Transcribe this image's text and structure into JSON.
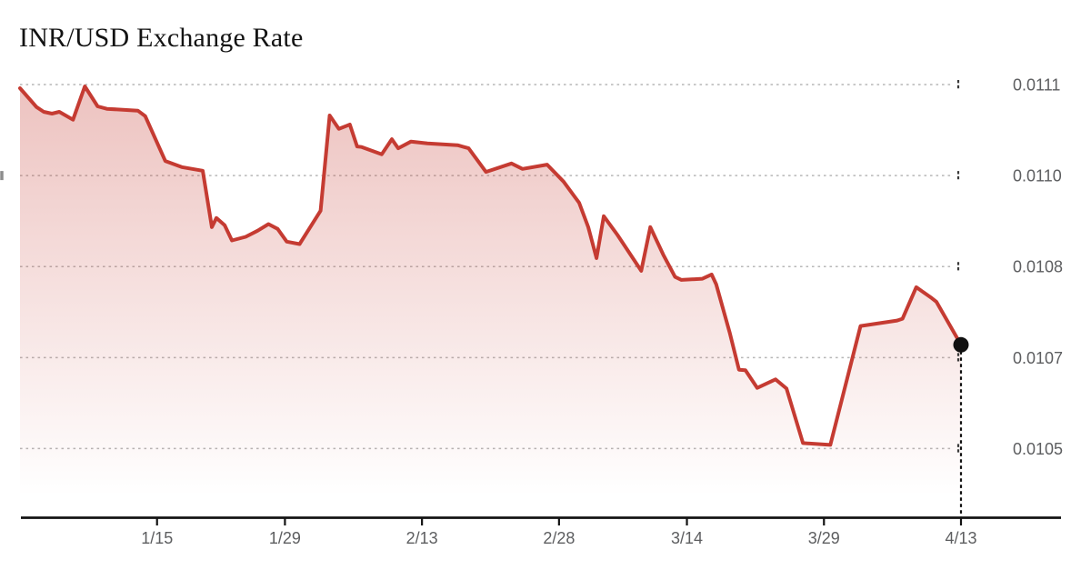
{
  "chart_data": {
    "type": "area",
    "title": "INR/USD Exchange Rate",
    "xlabel": "",
    "ylabel": "",
    "legend": "none",
    "grid": "dashed-horizontal",
    "x_axis": {
      "start_date": "12/31",
      "end_date": "4/13",
      "span_days": 103
    },
    "ylim": [
      0.010386,
      0.0111
    ],
    "x_ticks": [
      {
        "label": "1/15",
        "day": 15
      },
      {
        "label": "1/29",
        "day": 29
      },
      {
        "label": "2/13",
        "day": 44
      },
      {
        "label": "2/28",
        "day": 59
      },
      {
        "label": "3/14",
        "day": 73
      },
      {
        "label": "3/29",
        "day": 88
      },
      {
        "label": "4/13",
        "day": 103
      }
    ],
    "y_ticks": [
      {
        "label": "0.0111",
        "value": 0.0111
      },
      {
        "label": "0.0110",
        "value": 0.01095
      },
      {
        "label": "0.0108",
        "value": 0.0108
      },
      {
        "label": "0.0107",
        "value": 0.01065
      },
      {
        "label": "0.0105",
        "value": 0.0105
      }
    ],
    "end_marker": {
      "date": "4/13",
      "value": 0.010671,
      "style": "dot-with-dashed-dropline"
    },
    "colors": {
      "line": "#c53b32",
      "fill_top": "rgba(197,59,50,0.31)",
      "fill_bottom": "rgba(197,59,50,0)",
      "grid": "#b7b7b7",
      "axis": "#131313",
      "tick": "#3a3a3a",
      "tick_label": "#5d5e60",
      "marker": "#111111",
      "title": "#131313"
    },
    "series": [
      {
        "date": "12/31",
        "day": 0.0,
        "value": 0.011094
      },
      {
        "date": "1/2",
        "day": 1.8,
        "value": 0.011063
      },
      {
        "date": "1/3",
        "day": 2.6,
        "value": 0.011055
      },
      {
        "date": "1/4",
        "day": 3.5,
        "value": 0.011052
      },
      {
        "date": "1/5",
        "day": 4.3,
        "value": 0.011055
      },
      {
        "date": "1/6",
        "day": 5.8,
        "value": 0.011042
      },
      {
        "date": "1/7",
        "day": 7.1,
        "value": 0.011097
      },
      {
        "date": "1/9",
        "day": 8.5,
        "value": 0.011064
      },
      {
        "date": "1/10",
        "day": 9.5,
        "value": 0.01106
      },
      {
        "date": "1/13",
        "day": 12.9,
        "value": 0.011057
      },
      {
        "date": "1/14",
        "day": 13.7,
        "value": 0.011048
      },
      {
        "date": "1/16",
        "day": 15.9,
        "value": 0.010974
      },
      {
        "date": "1/18",
        "day": 17.7,
        "value": 0.010964
      },
      {
        "date": "1/20",
        "day": 20.0,
        "value": 0.010958
      },
      {
        "date": "1/21",
        "day": 21.0,
        "value": 0.010865
      },
      {
        "date": "1/22",
        "day": 21.5,
        "value": 0.01088
      },
      {
        "date": "1/23",
        "day": 22.4,
        "value": 0.010868
      },
      {
        "date": "1/24",
        "day": 23.2,
        "value": 0.010843
      },
      {
        "date": "1/25",
        "day": 24.7,
        "value": 0.010849
      },
      {
        "date": "1/26",
        "day": 26.0,
        "value": 0.010859
      },
      {
        "date": "1/27",
        "day": 27.2,
        "value": 0.01087
      },
      {
        "date": "1/28",
        "day": 28.2,
        "value": 0.010862
      },
      {
        "date": "1/29",
        "day": 29.2,
        "value": 0.010841
      },
      {
        "date": "1/31",
        "day": 30.6,
        "value": 0.010837
      },
      {
        "date": "2/2",
        "day": 32.9,
        "value": 0.010892
      },
      {
        "date": "2/3",
        "day": 33.9,
        "value": 0.011049
      },
      {
        "date": "2/4",
        "day": 34.9,
        "value": 0.011027
      },
      {
        "date": "2/5",
        "day": 36.1,
        "value": 0.011034
      },
      {
        "date": "2/6",
        "day": 36.9,
        "value": 0.010998
      },
      {
        "date": "2/7",
        "day": 37.4,
        "value": 0.010997
      },
      {
        "date": "2/9",
        "day": 39.6,
        "value": 0.010985
      },
      {
        "date": "2/10",
        "day": 40.7,
        "value": 0.01101
      },
      {
        "date": "2/11",
        "day": 41.4,
        "value": 0.010995
      },
      {
        "date": "2/12",
        "day": 42.8,
        "value": 0.011006
      },
      {
        "date": "2/14",
        "day": 44.6,
        "value": 0.011003
      },
      {
        "date": "2/17",
        "day": 47.9,
        "value": 0.011
      },
      {
        "date": "2/18",
        "day": 49.1,
        "value": 0.010995
      },
      {
        "date": "2/20",
        "day": 51.0,
        "value": 0.010956
      },
      {
        "date": "2/23",
        "day": 53.8,
        "value": 0.01097
      },
      {
        "date": "2/24",
        "day": 55.0,
        "value": 0.010961
      },
      {
        "date": "2/26",
        "day": 57.7,
        "value": 0.010968
      },
      {
        "date": "2/28",
        "day": 59.5,
        "value": 0.01094
      },
      {
        "date": "3/2",
        "day": 61.2,
        "value": 0.010905
      },
      {
        "date": "3/3",
        "day": 62.2,
        "value": 0.010865
      },
      {
        "date": "3/4",
        "day": 63.1,
        "value": 0.010814
      },
      {
        "date": "3/5",
        "day": 63.9,
        "value": 0.010883
      },
      {
        "date": "3/6",
        "day": 65.4,
        "value": 0.010852
      },
      {
        "date": "3/9",
        "day": 68.0,
        "value": 0.010793
      },
      {
        "date": "3/10",
        "day": 69.0,
        "value": 0.010865
      },
      {
        "date": "3/11",
        "day": 70.4,
        "value": 0.01082
      },
      {
        "date": "3/13",
        "day": 71.7,
        "value": 0.010783
      },
      {
        "date": "3/14",
        "day": 72.4,
        "value": 0.010778
      },
      {
        "date": "3/16",
        "day": 74.7,
        "value": 0.01078
      },
      {
        "date": "3/17",
        "day": 75.7,
        "value": 0.010787
      },
      {
        "date": "3/18",
        "day": 76.2,
        "value": 0.010771
      },
      {
        "date": "3/19",
        "day": 77.7,
        "value": 0.01069
      },
      {
        "date": "3/20",
        "day": 78.7,
        "value": 0.01063
      },
      {
        "date": "3/21",
        "day": 79.4,
        "value": 0.010629
      },
      {
        "date": "3/22",
        "day": 80.7,
        "value": 0.0106
      },
      {
        "date": "3/24",
        "day": 82.7,
        "value": 0.010614
      },
      {
        "date": "3/25",
        "day": 83.9,
        "value": 0.010599
      },
      {
        "date": "3/27",
        "day": 85.7,
        "value": 0.010509
      },
      {
        "date": "3/30",
        "day": 88.7,
        "value": 0.010506
      },
      {
        "date": "4/2",
        "day": 92.0,
        "value": 0.010702
      },
      {
        "date": "4/6",
        "day": 96.0,
        "value": 0.010711
      },
      {
        "date": "4/7",
        "day": 96.6,
        "value": 0.010714
      },
      {
        "date": "4/8",
        "day": 98.1,
        "value": 0.010766
      },
      {
        "date": "4/10",
        "day": 99.8,
        "value": 0.010748
      },
      {
        "date": "4/11",
        "day": 100.3,
        "value": 0.010742
      },
      {
        "date": "4/13",
        "day": 103.0,
        "value": 0.010671
      }
    ]
  }
}
